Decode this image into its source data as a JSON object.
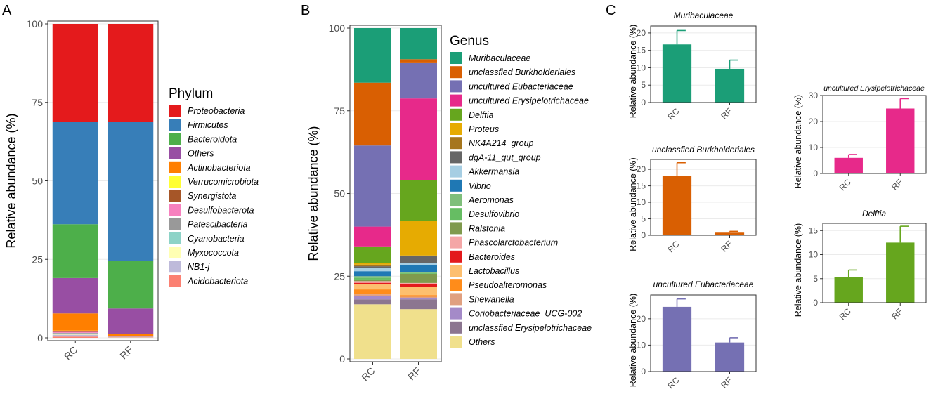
{
  "panel_labels": {
    "a": "A",
    "b": "B",
    "c": "C"
  },
  "chart_data": [
    {
      "id": "phylum",
      "type": "stacked-bar",
      "panel": "A",
      "categories": [
        "RC",
        "RF"
      ],
      "ylabel": "Relative abundance (%)",
      "ylim": [
        0,
        100
      ],
      "yticks": [
        0,
        25,
        50,
        75,
        100
      ],
      "legend_title": "Phylum",
      "series": [
        {
          "name": "Proteobacteria",
          "color": "#E41A1C",
          "values": [
            31.2,
            31.2
          ]
        },
        {
          "name": "Firmicutes",
          "color": "#377EB8",
          "values": [
            32.8,
            44.4
          ]
        },
        {
          "name": "Bacteroidota",
          "color": "#4DAF4A",
          "values": [
            17.2,
            15.2
          ]
        },
        {
          "name": "Others",
          "color": "#984EA3",
          "values": [
            11.3,
            8.2
          ]
        },
        {
          "name": "Actinobacteriota",
          "color": "#FF7F00",
          "values": [
            5.5,
            0.6
          ]
        },
        {
          "name": "Verrucomicrobiota",
          "color": "#FFFF33",
          "values": [
            0.2,
            0.1
          ]
        },
        {
          "name": "Synergistota",
          "color": "#A65628",
          "values": [
            0.2,
            0.05
          ]
        },
        {
          "name": "Desulfobacterota",
          "color": "#F781BF",
          "values": [
            0.3,
            0.1
          ]
        },
        {
          "name": "Patescibacteria",
          "color": "#999999",
          "values": [
            0.2,
            0.05
          ]
        },
        {
          "name": "Cyanobacteria",
          "color": "#8DD3C7",
          "values": [
            0.2,
            0.05
          ]
        },
        {
          "name": "Myxococcota",
          "color": "#FFFFB3",
          "values": [
            0.2,
            0.05
          ]
        },
        {
          "name": "NB1-j",
          "color": "#BEBADA",
          "values": [
            0.6,
            0.05
          ]
        },
        {
          "name": "Acidobacteriota",
          "color": "#FB8072",
          "values": [
            0.4,
            0.1
          ]
        }
      ]
    },
    {
      "id": "genus",
      "type": "stacked-bar",
      "panel": "B",
      "categories": [
        "RC",
        "RF"
      ],
      "ylabel": "Relative abundance (%)",
      "ylim": [
        0,
        100
      ],
      "yticks": [
        0,
        25,
        50,
        75,
        100
      ],
      "legend_title": "Genus",
      "series": [
        {
          "name": "Muribaculaceae",
          "color": "#1B9E77",
          "values": [
            16.5,
            9.5
          ]
        },
        {
          "name": "unclassfied Burkholderiales",
          "color": "#D95F02",
          "values": [
            19.0,
            1.0
          ]
        },
        {
          "name": "uncultured Eubacteriaceae",
          "color": "#7570B3",
          "values": [
            24.5,
            11.0
          ]
        },
        {
          "name": "uncultured Erysipelotrichaceae",
          "color": "#E7298A",
          "values": [
            6.0,
            25.0
          ]
        },
        {
          "name": "Delftia",
          "color": "#66A61E",
          "values": [
            5.0,
            12.5
          ]
        },
        {
          "name": "Proteus",
          "color": "#E6AB02",
          "values": [
            0.5,
            10.5
          ]
        },
        {
          "name": "NK4A214_group",
          "color": "#A6761D",
          "values": [
            0.5,
            0.2
          ]
        },
        {
          "name": "dgA-11_gut_group",
          "color": "#666666",
          "values": [
            0.5,
            2.2
          ]
        },
        {
          "name": "Akkermansia",
          "color": "#A6CEE3",
          "values": [
            1.0,
            0.5
          ]
        },
        {
          "name": "Vibrio",
          "color": "#1F78B4",
          "values": [
            1.5,
            2.2
          ]
        },
        {
          "name": "Aeromonas",
          "color": "#7FBF7B",
          "values": [
            0.5,
            0.3
          ]
        },
        {
          "name": "Desulfovibrio",
          "color": "#66BD63",
          "values": [
            0.5,
            0.2
          ]
        },
        {
          "name": "Ralstonia",
          "color": "#7F9A4D",
          "values": [
            0.5,
            2.8
          ]
        },
        {
          "name": "Phascolarctobacterium",
          "color": "#F4A6A6",
          "values": [
            0.5,
            0.2
          ]
        },
        {
          "name": "Bacteroides",
          "color": "#E31A1C",
          "values": [
            0.5,
            1.0
          ]
        },
        {
          "name": "Lactobacillus",
          "color": "#FDBF6F",
          "values": [
            1.5,
            2.5
          ]
        },
        {
          "name": "Pseudoalteromonas",
          "color": "#FF8C1A",
          "values": [
            1.5,
            0.5
          ]
        },
        {
          "name": "Shewanella",
          "color": "#E0A080",
          "values": [
            0.5,
            0.5
          ]
        },
        {
          "name": "Coriobacteriaceae_UCG-002",
          "color": "#A48AC8",
          "values": [
            1.0,
            0.3
          ]
        },
        {
          "name": "unclassfied Erysipelotrichaceae",
          "color": "#8C7690",
          "values": [
            1.5,
            3.0
          ]
        },
        {
          "name": "Others",
          "color": "#F0E08C",
          "values": [
            16.5,
            15.2
          ]
        }
      ]
    },
    {
      "id": "muribaculaceae",
      "type": "bar",
      "panel": "C",
      "title": "Muribaculaceae",
      "categories": [
        "RC",
        "RF"
      ],
      "values": [
        16.7,
        9.7
      ],
      "errors": [
        4.0,
        2.5
      ],
      "color": "#1B9E77",
      "ylabel": "Relative abundance (%)",
      "ylim": [
        0,
        22
      ],
      "yticks": [
        0,
        5,
        10,
        15,
        20
      ]
    },
    {
      "id": "burkholderiales",
      "type": "bar",
      "panel": "C",
      "title": "unclassfied Burkholderiales",
      "categories": [
        "RC",
        "RF"
      ],
      "values": [
        18.0,
        0.8
      ],
      "errors": [
        4.0,
        0.4
      ],
      "color": "#D95F02",
      "ylabel": "Relative abundance (%)",
      "ylim": [
        0,
        23
      ],
      "yticks": [
        0,
        5,
        10,
        15,
        20
      ]
    },
    {
      "id": "eubacteriaceae",
      "type": "bar",
      "panel": "C",
      "title": "uncultured Eubacteriaceae",
      "categories": [
        "RC",
        "RF"
      ],
      "values": [
        24.5,
        11.0
      ],
      "errors": [
        3.0,
        1.8
      ],
      "color": "#7570B3",
      "ylabel": "Relative abundance (%)",
      "ylim": [
        0,
        29
      ],
      "yticks": [
        0,
        10,
        20
      ]
    },
    {
      "id": "erysipelotrichaceae",
      "type": "bar",
      "panel": "C",
      "title": "uncultured Erysipelotrichaceae",
      "categories": [
        "RC",
        "RF"
      ],
      "values": [
        6.0,
        25.0
      ],
      "errors": [
        1.3,
        3.8
      ],
      "color": "#E7298A",
      "ylabel": "Relative abundance (%)",
      "ylim": [
        0,
        30
      ],
      "yticks": [
        0,
        10,
        20,
        30
      ]
    },
    {
      "id": "delftia",
      "type": "bar",
      "panel": "C",
      "title": "Delftia",
      "categories": [
        "RC",
        "RF"
      ],
      "values": [
        5.3,
        12.5
      ],
      "errors": [
        1.5,
        3.4
      ],
      "color": "#66A61E",
      "ylabel": "Relative abundance (%)",
      "ylim": [
        0,
        16.5
      ],
      "yticks": [
        0,
        5,
        10,
        15
      ]
    }
  ]
}
